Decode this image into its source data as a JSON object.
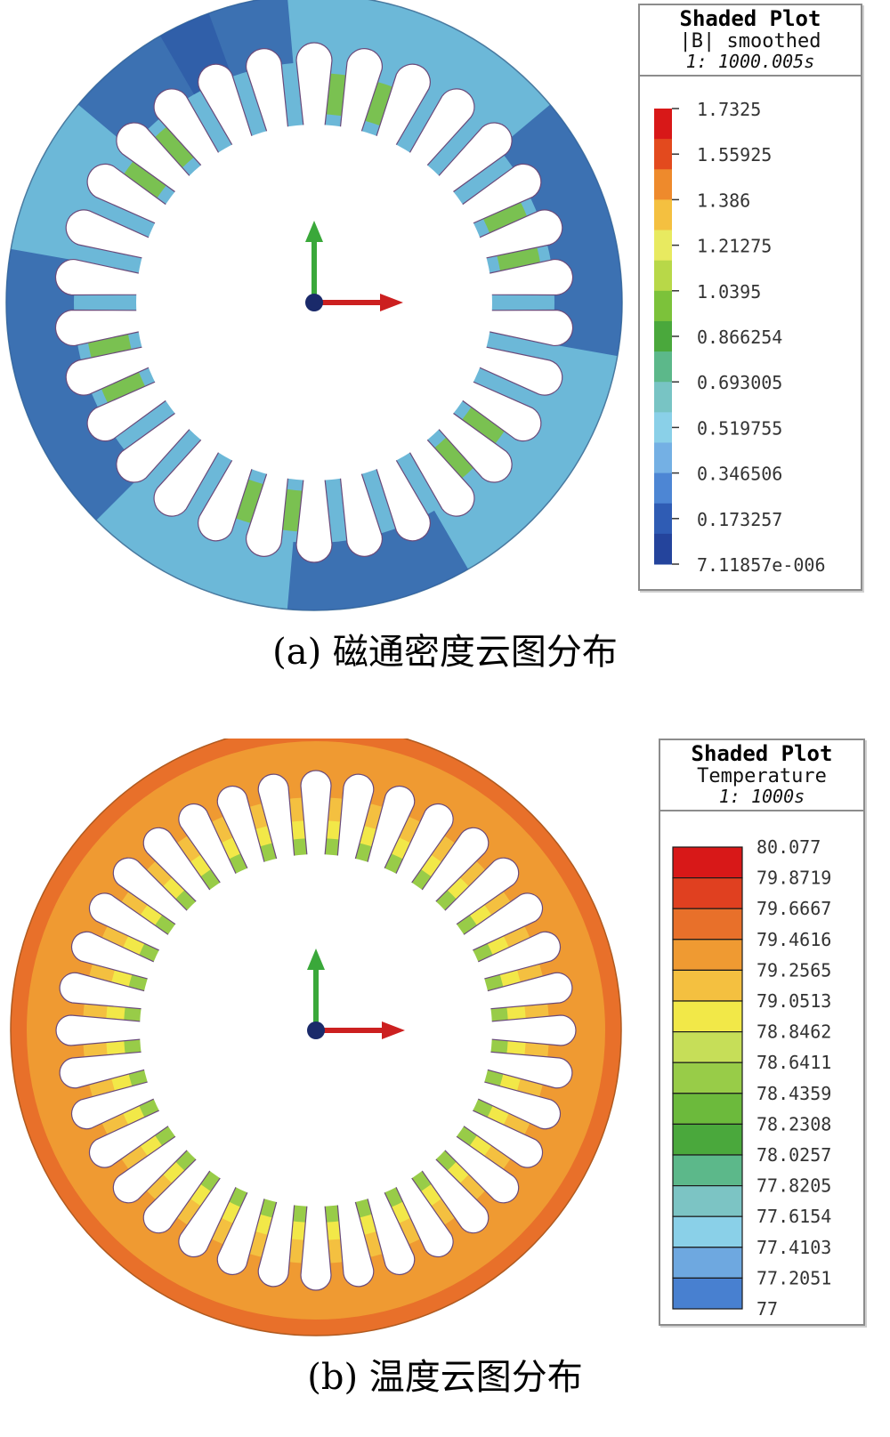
{
  "panels": [
    {
      "caption": "(a) 磁通密度云图分布",
      "legend": {
        "title": "Shaded Plot",
        "quantity": "|B| smoothed",
        "time": "1: 1000.005s",
        "values": [
          "1.7325",
          "1.55925",
          "1.386",
          "1.21275",
          "1.0395",
          "0.866254",
          "0.693005",
          "0.519755",
          "0.346506",
          "0.173257",
          "7.11857e-006"
        ],
        "colors": [
          "#d81818",
          "#e34a1e",
          "#ee8a2c",
          "#f4c040",
          "#e8ea60",
          "#b8d848",
          "#7cc23a",
          "#4aa83c",
          "#5cb88a",
          "#78c4c4",
          "#8ad0e8",
          "#74b0e4",
          "#4d86d4",
          "#2f5cb4",
          "#24449c"
        ]
      },
      "field_colors": {
        "yoke": "#6cb8d8",
        "yoke_dark": "#2c5aa6",
        "tooth": "#7cc23a",
        "tooth_tip": "#d84020"
      }
    },
    {
      "caption": "(b) 温度云图分布",
      "legend": {
        "title": "Shaded Plot",
        "quantity": "Temperature",
        "time": "1: 1000s",
        "values": [
          "80.077",
          "79.8719",
          "79.6667",
          "79.4616",
          "79.2565",
          "79.0513",
          "78.8462",
          "78.6411",
          "78.4359",
          "78.2308",
          "78.0257",
          "77.8205",
          "77.6154",
          "77.4103",
          "77.2051",
          "77"
        ],
        "colors": [
          "#d81818",
          "#e04020",
          "#e8702a",
          "#ef9a32",
          "#f4c040",
          "#f2e848",
          "#c6de58",
          "#98cc48",
          "#6cba3c",
          "#4aa83c",
          "#5cb88a",
          "#7cc4c4",
          "#8ad0e8",
          "#6ea8e0",
          "#4880d0",
          "#2c58b0",
          "#22449c"
        ]
      },
      "field_colors": {
        "outer_ring": "#e8702a",
        "yoke": "#ef9a32",
        "tooth_root": "#f4c040",
        "tooth_mid": "#f2e848",
        "tooth_tip": "#98cc48"
      }
    }
  ]
}
